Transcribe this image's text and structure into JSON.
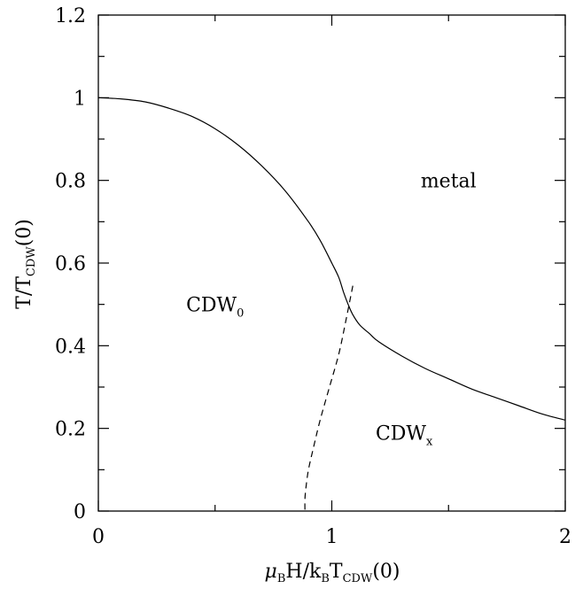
{
  "chart_data": {
    "type": "line",
    "title": "",
    "xlabel": {
      "prefix": "μ",
      "prefix_sub": "B",
      "mid": "H/k",
      "mid_sub": "B",
      "mid2": "T",
      "mid2_sub": "CDW",
      "suffix": "(0)"
    },
    "ylabel": {
      "main": "T/T",
      "sub": "CDW",
      "suffix": "(0)"
    },
    "xlim": [
      0,
      2
    ],
    "ylim": [
      0,
      1.2
    ],
    "x_ticks": [
      0,
      1,
      2
    ],
    "x_tick_labels": [
      "0",
      "1",
      "2"
    ],
    "x_minor_ticks": [
      0.5,
      1.5
    ],
    "y_ticks": [
      0,
      0.2,
      0.4,
      0.6,
      0.8,
      1.0,
      1.2
    ],
    "y_tick_labels": [
      "0",
      "0.2",
      "0.4",
      "0.6",
      "0.8",
      "1",
      "1.2"
    ],
    "y_minor_ticks": [
      0.1,
      0.3,
      0.5,
      0.7,
      0.9,
      1.1
    ],
    "grid": false,
    "series": [
      {
        "style": "solid",
        "x": [
          0,
          0.1,
          0.2,
          0.3,
          0.4,
          0.5,
          0.6,
          0.7,
          0.8,
          0.9,
          0.95,
          1.0,
          1.03,
          1.05,
          1.07,
          1.09,
          1.12,
          1.16,
          1.2,
          1.3,
          1.4,
          1.5,
          1.6,
          1.7,
          1.8,
          1.9,
          2.0
        ],
        "y": [
          1.0,
          0.997,
          0.99,
          0.975,
          0.955,
          0.925,
          0.885,
          0.835,
          0.775,
          0.7,
          0.655,
          0.6,
          0.565,
          0.53,
          0.5,
          0.475,
          0.45,
          0.43,
          0.41,
          0.375,
          0.345,
          0.32,
          0.295,
          0.275,
          0.255,
          0.235,
          0.22
        ]
      },
      {
        "style": "dashed",
        "x": [
          1.09,
          1.06,
          1.03,
          0.99,
          0.95,
          0.92,
          0.9,
          0.89,
          0.885,
          0.885
        ],
        "y": [
          0.545,
          0.46,
          0.38,
          0.3,
          0.22,
          0.15,
          0.1,
          0.06,
          0.03,
          0.0
        ]
      }
    ],
    "annotations": [
      {
        "text": "metal",
        "sub": "",
        "x": 1.5,
        "y": 0.8
      },
      {
        "text": "CDW",
        "sub": "0",
        "x": 0.5,
        "y": 0.5
      },
      {
        "text": "CDW",
        "sub": "x",
        "x": 1.31,
        "y": 0.19
      }
    ]
  }
}
